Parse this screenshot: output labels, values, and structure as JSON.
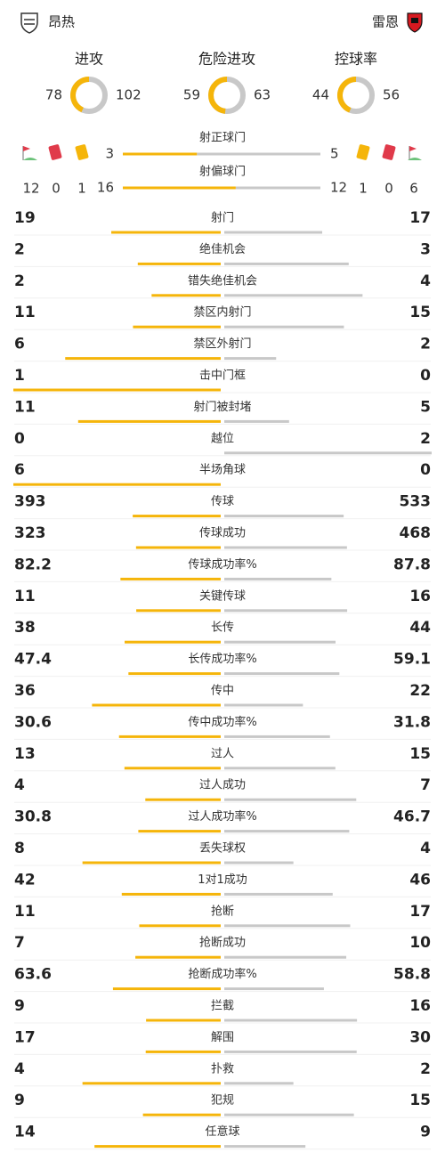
{
  "home": {
    "name": "昂热"
  },
  "away": {
    "name": "雷恩"
  },
  "rings": [
    {
      "label": "进攻",
      "home": 78,
      "away": 102
    },
    {
      "label": "危险进攻",
      "home": 59,
      "away": 63
    },
    {
      "label": "控球率",
      "home": 44,
      "away": 56
    }
  ],
  "cards": {
    "home": {
      "corners": 12,
      "red": 0,
      "yellow": 1
    },
    "away": {
      "yellow": 1,
      "red": 0,
      "corners": 6
    }
  },
  "shots": [
    {
      "label": "射正球门",
      "home": 3,
      "away": 5
    },
    {
      "label": "射偏球门",
      "home": 16,
      "away": 12
    }
  ],
  "stats": [
    {
      "label": "射门",
      "home": 19,
      "away": 17
    },
    {
      "label": "绝佳机会",
      "home": 2,
      "away": 3
    },
    {
      "label": "错失绝佳机会",
      "home": 2,
      "away": 4
    },
    {
      "label": "禁区内射门",
      "home": 11,
      "away": 15
    },
    {
      "label": "禁区外射门",
      "home": 6,
      "away": 2
    },
    {
      "label": "击中门框",
      "home": 1,
      "away": 0
    },
    {
      "label": "射门被封堵",
      "home": 11,
      "away": 5
    },
    {
      "label": "越位",
      "home": 0,
      "away": 2
    },
    {
      "label": "半场角球",
      "home": 6,
      "away": 0
    },
    {
      "label": "传球",
      "home": 393,
      "away": 533
    },
    {
      "label": "传球成功",
      "home": 323,
      "away": 468
    },
    {
      "label": "传球成功率%",
      "home": 82.2,
      "away": 87.8
    },
    {
      "label": "关键传球",
      "home": 11,
      "away": 16
    },
    {
      "label": "长传",
      "home": 38,
      "away": 44
    },
    {
      "label": "长传成功率%",
      "home": 47.4,
      "away": 59.1
    },
    {
      "label": "传中",
      "home": 36,
      "away": 22
    },
    {
      "label": "传中成功率%",
      "home": 30.6,
      "away": 31.8
    },
    {
      "label": "过人",
      "home": 13,
      "away": 15
    },
    {
      "label": "过人成功",
      "home": 4,
      "away": 7
    },
    {
      "label": "过人成功率%",
      "home": 30.8,
      "away": 46.7
    },
    {
      "label": "丢失球权",
      "home": 8,
      "away": 4
    },
    {
      "label": "1对1成功",
      "home": 42,
      "away": 46
    },
    {
      "label": "抢断",
      "home": 11,
      "away": 17
    },
    {
      "label": "抢断成功",
      "home": 7,
      "away": 10
    },
    {
      "label": "抢断成功率%",
      "home": 63.6,
      "away": 58.8
    },
    {
      "label": "拦截",
      "home": 9,
      "away": 16
    },
    {
      "label": "解围",
      "home": 17,
      "away": 30
    },
    {
      "label": "扑救",
      "home": 4,
      "away": 2
    },
    {
      "label": "犯规",
      "home": 9,
      "away": 15
    },
    {
      "label": "任意球",
      "home": 14,
      "away": 9
    }
  ]
}
